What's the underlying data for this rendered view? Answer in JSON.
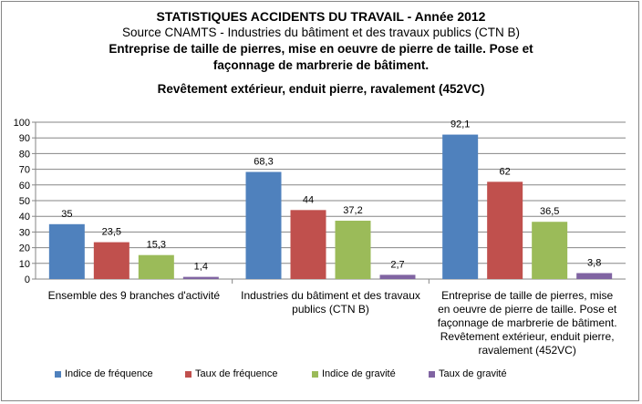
{
  "chart_data": {
    "type": "bar",
    "title": "STATISTIQUES ACCIDENTS DU TRAVAIL - Année 2012",
    "subtitle_lines": [
      "Source CNAMTS - Industries  du bâtiment et des travaux publics (CTN  B)",
      "Entreprise de taille de pierres, mise en oeuvre de pierre de taille. Pose et",
      "façonnage de marbrerie de bâtiment.",
      "Revêtement extérieur, enduit pierre, ravalement (452VC)"
    ],
    "categories": [
      "Ensemble des 9 branches d'activité",
      "Industries du bâtiment et des travaux publics (CTN B)",
      "Entreprise de taille de pierres, mise en oeuvre de pierre de taille. Pose et façonnage de marbrerie de bâtiment. Revêtement extérieur, enduit pierre, ravalement (452VC)"
    ],
    "category_lines": [
      [
        "Ensemble des 9 branches d'activité"
      ],
      [
        "Industries du bâtiment et des travaux",
        "publics (CTN B)"
      ],
      [
        "Entreprise de taille de pierres, mise",
        "en oeuvre de pierre de taille. Pose et",
        "façonnage de marbrerie de bâtiment.",
        "Revêtement extérieur, enduit pierre,",
        "ravalement (452VC)"
      ]
    ],
    "series": [
      {
        "name": "Indice de fréquence",
        "color": "#4F81BD",
        "values": [
          35,
          68.3,
          92.1
        ],
        "labels": [
          "35",
          "68,3",
          "92,1"
        ]
      },
      {
        "name": "Taux de fréquence",
        "color": "#C0504D",
        "values": [
          23.5,
          44,
          62
        ],
        "labels": [
          "23,5",
          "44",
          "62"
        ]
      },
      {
        "name": "Indice de gravité",
        "color": "#9BBB59",
        "values": [
          15.3,
          37.2,
          36.5
        ],
        "labels": [
          "15,3",
          "37,2",
          "36,5"
        ]
      },
      {
        "name": "Taux de gravité",
        "color": "#8064A2",
        "values": [
          1.4,
          2.7,
          3.8
        ],
        "labels": [
          "1,4",
          "2,7",
          "3,8"
        ]
      }
    ],
    "ylim": [
      0,
      100
    ],
    "yticks": [
      "0",
      "10",
      "20",
      "30",
      "40",
      "50",
      "60",
      "70",
      "80",
      "90",
      "100"
    ],
    "grid": true,
    "legend_position": "bottom"
  }
}
